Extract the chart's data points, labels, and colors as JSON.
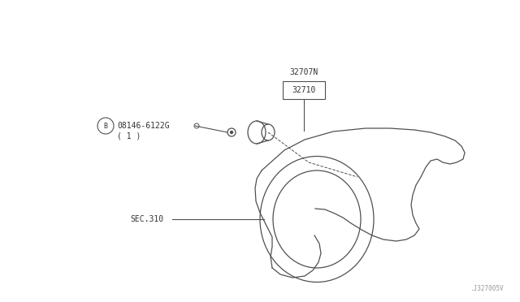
{
  "bg_color": "#ffffff",
  "line_color": "#505050",
  "text_color": "#333333",
  "watermark": ".J327005V",
  "label_32707N": "32707N",
  "label_32710": "32710",
  "label_bolt": "08146-6122G",
  "label_bolt2": "( 1 )",
  "label_sec": "SEC.310"
}
